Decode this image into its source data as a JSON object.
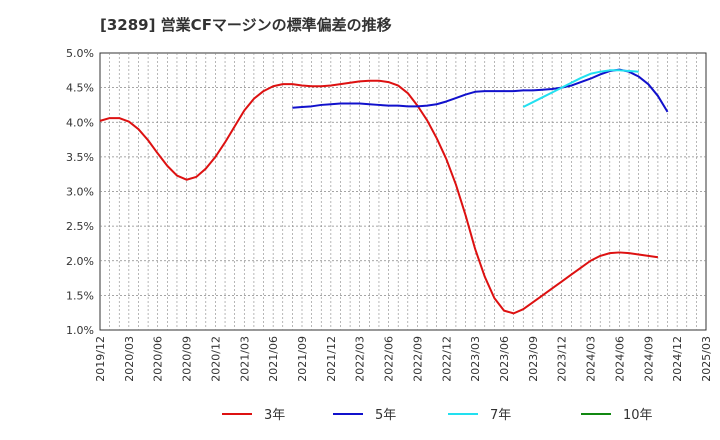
{
  "chart_data": {
    "type": "line",
    "title": "[3289]  営業CFマージンの標準偏差の推移",
    "xlabel": "",
    "ylabel": "",
    "ylim": [
      1.0,
      5.0
    ],
    "y_ticks": [
      "5.0%",
      "4.5%",
      "4.0%",
      "3.5%",
      "3.0%",
      "2.5%",
      "2.0%",
      "1.5%",
      "1.0%"
    ],
    "y_tick_values": [
      5.0,
      4.5,
      4.0,
      3.5,
      3.0,
      2.5,
      2.0,
      1.5,
      1.0
    ],
    "x_ticks": [
      "2019/12",
      "2020/03",
      "2020/06",
      "2020/09",
      "2020/12",
      "2021/03",
      "2021/06",
      "2021/09",
      "2021/12",
      "2022/03",
      "2022/06",
      "2022/09",
      "2022/12",
      "2023/03",
      "2023/06",
      "2023/09",
      "2023/12",
      "2024/03",
      "2024/06",
      "2024/09",
      "2024/12",
      "2025/03"
    ],
    "grid": true,
    "legend_position": "bottom",
    "series": [
      {
        "name": "3年",
        "color": "#dd1111",
        "start": "2019/12",
        "values": [
          4.02,
          4.06,
          4.06,
          4.01,
          3.9,
          3.74,
          3.55,
          3.37,
          3.23,
          3.17,
          3.21,
          3.33,
          3.5,
          3.71,
          3.94,
          4.17,
          4.34,
          4.45,
          4.52,
          4.55,
          4.55,
          4.53,
          4.52,
          4.52,
          4.53,
          4.55,
          4.57,
          4.59,
          4.6,
          4.6,
          4.58,
          4.53,
          4.42,
          4.24,
          4.03,
          3.77,
          3.47,
          3.1,
          2.66,
          2.17,
          1.77,
          1.46,
          1.28,
          1.24,
          1.3,
          1.4,
          1.5,
          1.6,
          1.7,
          1.8,
          1.9,
          2.0,
          2.07,
          2.11,
          2.12,
          2.11,
          2.09,
          2.07,
          2.05
        ]
      },
      {
        "name": "5年",
        "color": "#1111cc",
        "start": "2021/08",
        "values": [
          4.21,
          4.22,
          4.23,
          4.25,
          4.26,
          4.27,
          4.27,
          4.27,
          4.26,
          4.25,
          4.24,
          4.24,
          4.23,
          4.23,
          4.24,
          4.26,
          4.3,
          4.35,
          4.4,
          4.44,
          4.45,
          4.45,
          4.45,
          4.45,
          4.46,
          4.46,
          4.47,
          4.48,
          4.5,
          4.53,
          4.58,
          4.63,
          4.69,
          4.74,
          4.76,
          4.73,
          4.66,
          4.55,
          4.38,
          4.15
        ]
      },
      {
        "name": "7年",
        "color": "#22e0f0",
        "start": "2023/08",
        "values": [
          4.22,
          4.29,
          4.36,
          4.43,
          4.5,
          4.57,
          4.64,
          4.7,
          4.73,
          4.75,
          4.75,
          4.74,
          4.73
        ]
      },
      {
        "name": "10年",
        "color": "#118811",
        "start": "2024/09",
        "values": []
      }
    ]
  }
}
